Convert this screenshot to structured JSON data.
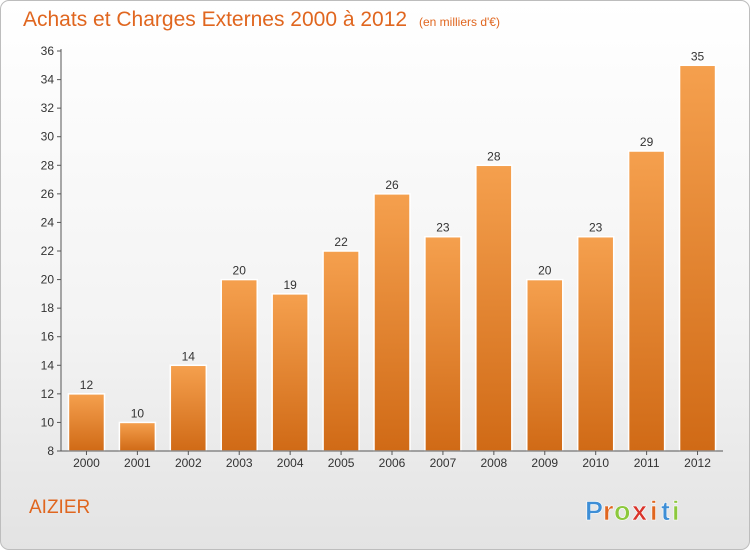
{
  "chart_data": {
    "type": "bar",
    "title": "Achats et Charges Externes 2000 à 2012",
    "subtitle": "(en milliers d'€)",
    "categories": [
      "2000",
      "2001",
      "2002",
      "2003",
      "2004",
      "2005",
      "2006",
      "2007",
      "2008",
      "2009",
      "2010",
      "2011",
      "2012"
    ],
    "values": [
      12,
      10,
      14,
      20,
      19,
      22,
      26,
      23,
      28,
      20,
      23,
      29,
      35
    ],
    "yticks": [
      8,
      10,
      12,
      14,
      16,
      18,
      20,
      22,
      24,
      26,
      28,
      30,
      32,
      34,
      36
    ],
    "ylim": [
      8,
      36
    ],
    "grid": false,
    "data_labels": true,
    "xlabel": "",
    "ylabel": ""
  },
  "commune_name": "AIZIER",
  "brand": {
    "name": "Proxiti",
    "letters": [
      "P",
      "r",
      "o",
      "x",
      "i",
      "t",
      "i"
    ]
  },
  "colors": {
    "bar_top": "#f5a04e",
    "bar_bottom": "#d06a16",
    "title": "#e0661f",
    "axis": "#555555",
    "brand_letters": [
      "#3d8ed6",
      "#e0661f",
      "#8cc83c",
      "#d9342b",
      "#e0661f",
      "#3d8ed6",
      "#8cc83c"
    ]
  }
}
